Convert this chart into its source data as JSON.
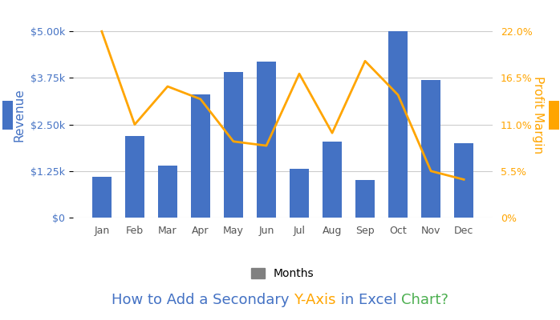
{
  "months": [
    "Jan",
    "Feb",
    "Mar",
    "Apr",
    "May",
    "Jun",
    "Jul",
    "Aug",
    "Sep",
    "Oct",
    "Nov",
    "Dec"
  ],
  "revenue": [
    1100,
    2200,
    1400,
    3300,
    3900,
    4200,
    1300,
    2050,
    1000,
    5000,
    3700,
    2000
  ],
  "profit_margin": [
    22.0,
    11.0,
    15.5,
    14.0,
    9.0,
    8.5,
    17.0,
    10.0,
    18.5,
    14.5,
    5.5,
    4.5
  ],
  "bar_color": "#4472C4",
  "line_color": "#FFA500",
  "line_marker_color": "#FFA500",
  "left_ylabel": "Revenue",
  "right_ylabel": "Profit Margin",
  "left_ylabel_color": "#4472C4",
  "right_ylabel_color": "#FFA500",
  "ylim_left": [
    0,
    5500
  ],
  "ylim_right": [
    0,
    24.2
  ],
  "yticks_left": [
    0,
    1250,
    2500,
    3750,
    5000
  ],
  "yticks_right": [
    0,
    5.5,
    11.0,
    16.5,
    22.0
  ],
  "ytick_labels_left": [
    "$0",
    "$1.25k",
    "$2.50k",
    "$3.75k",
    "$5.00k"
  ],
  "ytick_labels_right": [
    "0%",
    "5.5%",
    "11.0%",
    "16.5%",
    "22.0%"
  ],
  "background_color": "#FFFFFF",
  "grid_color": "#CCCCCC",
  "title_parts": [
    {
      "text": "How to Add a Secondary ",
      "color": "#4472C4"
    },
    {
      "text": "Y-Axis",
      "color": "#FFA500"
    },
    {
      "text": " in Excel ",
      "color": "#4472C4"
    },
    {
      "text": "Chart?",
      "color": "#4CAF50"
    }
  ],
  "legend_label": "Months",
  "legend_bar_color": "#808080",
  "tick_color_left": "#4472C4",
  "tick_color_right": "#FFA500",
  "tick_color_bottom": "#555555",
  "left_legend_color": "#4472C4",
  "right_legend_color": "#FFA500",
  "fontsize_ticks": 9,
  "fontsize_title": 13,
  "fontsize_ylabel": 11
}
